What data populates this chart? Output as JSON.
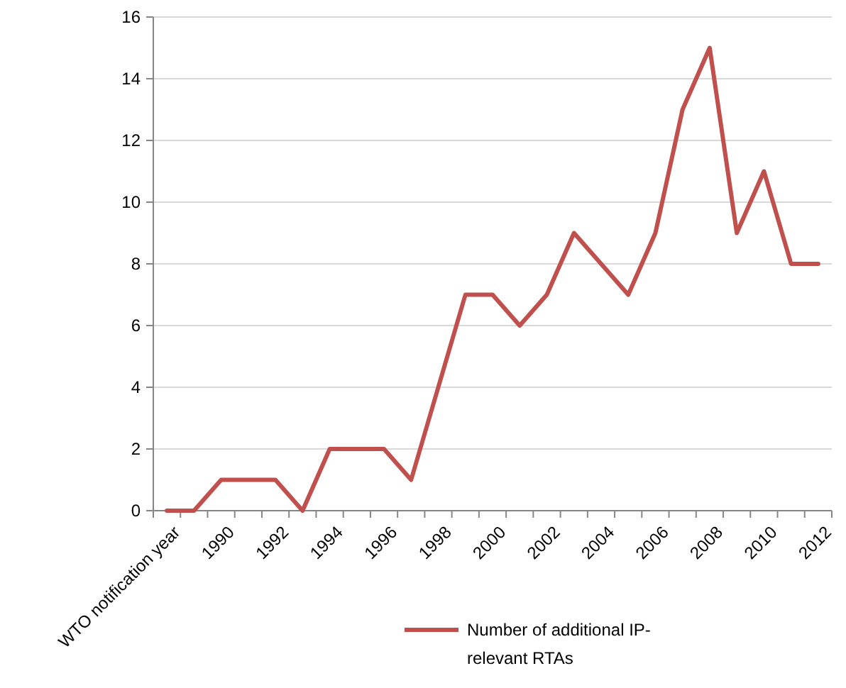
{
  "chart_data": {
    "type": "line",
    "xlabel": "WTO notification year",
    "categories": [
      null,
      null,
      "1990",
      null,
      "1992",
      null,
      "1994",
      null,
      "1996",
      null,
      "1998",
      null,
      "2000",
      null,
      "2002",
      null,
      "2004",
      null,
      "2006",
      null,
      "2008",
      null,
      "2010",
      null,
      "2012"
    ],
    "series": [
      {
        "name": "Number of additional IP-relevant RTAs",
        "color": "#c0504d",
        "values": [
          0,
          0,
          1,
          1,
          1,
          0,
          2,
          2,
          2,
          1,
          4,
          7,
          7,
          6,
          7,
          9,
          8,
          7,
          9,
          13,
          15,
          9,
          11,
          8,
          8
        ]
      }
    ],
    "ylim": [
      0,
      16
    ],
    "yticks": [
      0,
      2,
      4,
      6,
      8,
      10,
      12,
      14,
      16
    ],
    "grid": "y",
    "legend": "bottom",
    "marker": "none",
    "line_style": "solid"
  }
}
